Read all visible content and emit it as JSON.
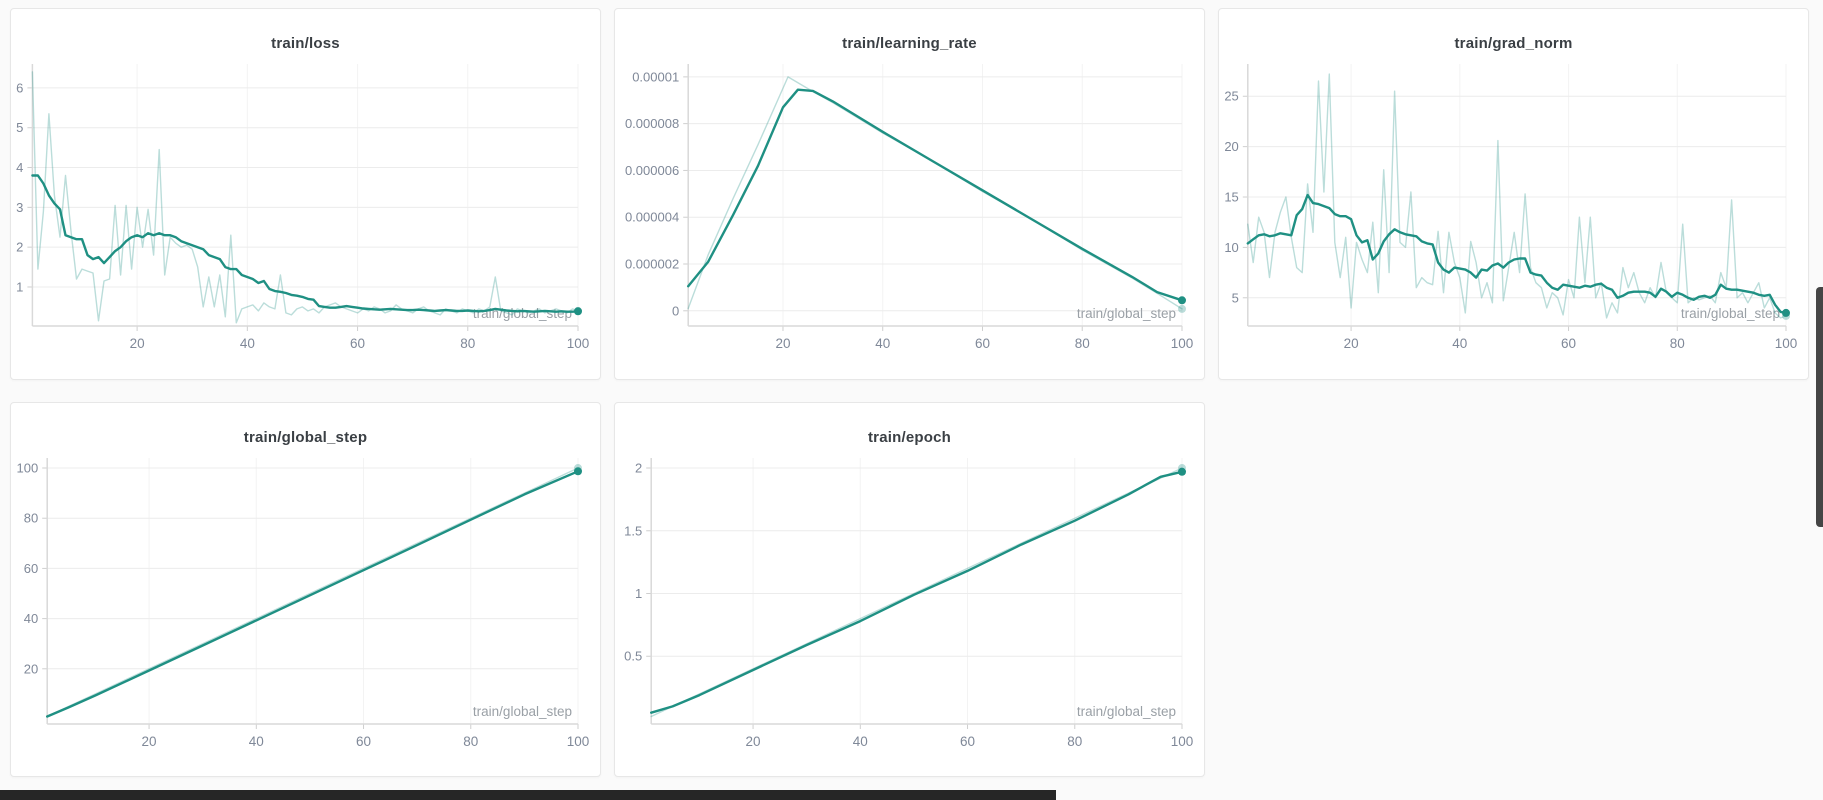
{
  "page": {
    "background_color": "#fafafa",
    "card_background": "#ffffff",
    "accent_color": "#1f9083",
    "raw_line_opacity": 0.3,
    "grid_color": "#ececec",
    "vgrid_color": "#f3f3f3",
    "axis_color": "#d9d9d9",
    "tick_mark_color": "#cfcfcf",
    "tick_text_color": "#7f8898",
    "title_text_color": "#3a3f44",
    "axis_title_color": "#9aa0a6",
    "scrollbar_thumb_color": "#454545",
    "bottom_bar_color": "#262626"
  },
  "x_axis": {
    "title": "train/global_step",
    "ticks": [
      20,
      40,
      60,
      80,
      100
    ],
    "tick_labels": [
      "20",
      "40",
      "60",
      "80",
      "100"
    ],
    "range": [
      1,
      100
    ]
  },
  "chart_data": [
    {
      "type": "line",
      "title": "train/loss",
      "xlabel": "train/global_step",
      "legend_position": "none",
      "grid": true,
      "ylim": [
        0.02,
        6.6
      ],
      "y_ticks": [
        1,
        2,
        3,
        4,
        5,
        6
      ],
      "y_tick_labels": [
        "1",
        "2",
        "3",
        "4",
        "5",
        "6"
      ],
      "series": [
        {
          "name": "train/loss (raw)",
          "role": "raw",
          "values": [
            6.4,
            1.45,
            2.9,
            5.35,
            3.3,
            2.25,
            3.8,
            2.4,
            1.2,
            1.45,
            1.4,
            1.35,
            0.15,
            1.15,
            1.2,
            3.05,
            1.3,
            3.05,
            1.45,
            3.0,
            2.0,
            2.95,
            1.8,
            4.45,
            1.3,
            2.25,
            2.1,
            2.0,
            2.05,
            1.95,
            1.5,
            0.5,
            1.25,
            0.5,
            1.3,
            0.25,
            2.3,
            0.1,
            0.45,
            0.5,
            0.55,
            0.4,
            0.6,
            0.5,
            0.45,
            1.3,
            0.35,
            0.3,
            0.45,
            0.5,
            0.4,
            0.45,
            0.35,
            0.5,
            0.55,
            0.6,
            0.5,
            0.45,
            0.4,
            0.35,
            0.45,
            0.4,
            0.5,
            0.45,
            0.35,
            0.4,
            0.55,
            0.45,
            0.4,
            0.35,
            0.45,
            0.5,
            0.4,
            0.35,
            0.3,
            0.45,
            0.4,
            0.35,
            0.45,
            0.4,
            0.35,
            0.45,
            0.4,
            0.5,
            1.25,
            0.4,
            0.35,
            0.3,
            0.45,
            0.4,
            0.35,
            0.4,
            0.45,
            0.35,
            0.4,
            0.45,
            0.4,
            0.35,
            0.45,
            0.4
          ]
        },
        {
          "name": "train/loss (smoothed)",
          "role": "smoothed",
          "values": [
            3.8,
            3.8,
            3.6,
            3.3,
            3.1,
            2.95,
            2.3,
            2.25,
            2.2,
            2.2,
            1.8,
            1.7,
            1.75,
            1.6,
            1.75,
            1.9,
            2.0,
            2.15,
            2.25,
            2.3,
            2.25,
            2.35,
            2.3,
            2.35,
            2.3,
            2.3,
            2.25,
            2.15,
            2.1,
            2.05,
            2.0,
            1.95,
            1.8,
            1.75,
            1.7,
            1.5,
            1.45,
            1.45,
            1.3,
            1.25,
            1.2,
            1.1,
            1.15,
            0.95,
            0.9,
            0.88,
            0.85,
            0.8,
            0.78,
            0.75,
            0.7,
            0.68,
            0.52,
            0.5,
            0.48,
            0.48,
            0.5,
            0.52,
            0.5,
            0.48,
            0.46,
            0.45,
            0.44,
            0.43,
            0.44,
            0.45,
            0.44,
            0.43,
            0.42,
            0.42,
            0.43,
            0.42,
            0.41,
            0.4,
            0.41,
            0.42,
            0.41,
            0.4,
            0.4,
            0.41,
            0.4,
            0.39,
            0.4,
            0.42,
            0.45,
            0.43,
            0.41,
            0.4,
            0.39,
            0.4,
            0.39,
            0.38,
            0.39,
            0.4,
            0.39,
            0.38,
            0.39,
            0.38,
            0.38,
            0.39
          ]
        }
      ]
    },
    {
      "type": "line",
      "title": "train/learning_rate",
      "xlabel": "train/global_step",
      "legend_position": "none",
      "grid": true,
      "ylim": [
        -6.5e-07,
        1.055e-05
      ],
      "y_ticks": [
        0,
        2e-06,
        4e-06,
        6e-06,
        8e-06,
        1e-05
      ],
      "y_tick_labels": [
        "0",
        "0.000002",
        "0.000004",
        "0.000006",
        "0.000008",
        "0.00001"
      ],
      "series": [
        {
          "name": "train/learning_rate (raw)",
          "role": "raw",
          "x": [
            1,
            5,
            10,
            15,
            21,
            25,
            30,
            40,
            50,
            60,
            70,
            80,
            90,
            95,
            100
          ],
          "values": [
            1e-07,
            2.4e-06,
            4.8e-06,
            7.1e-06,
            1e-05,
            9.5e-06,
            8.9e-06,
            7.6e-06,
            6.4e-06,
            5.1e-06,
            3.9e-06,
            2.6e-06,
            1.4e-06,
            7.5e-07,
            8e-08
          ]
        },
        {
          "name": "train/learning_rate (smoothed)",
          "role": "smoothed",
          "x": [
            1,
            5,
            10,
            15,
            20,
            23,
            26,
            30,
            40,
            50,
            60,
            70,
            80,
            90,
            95,
            100
          ],
          "values": [
            1.05e-06,
            2.1e-06,
            4.1e-06,
            6.2e-06,
            8.7e-06,
            9.45e-06,
            9.4e-06,
            8.95e-06,
            7.65e-06,
            6.4e-06,
            5.15e-06,
            3.9e-06,
            2.65e-06,
            1.45e-06,
            8e-07,
            4.5e-07
          ]
        }
      ]
    },
    {
      "type": "line",
      "title": "train/grad_norm",
      "xlabel": "train/global_step",
      "legend_position": "none",
      "grid": true,
      "ylim": [
        2.2,
        28.2
      ],
      "y_ticks": [
        5,
        10,
        15,
        20,
        25
      ],
      "y_tick_labels": [
        "5",
        "10",
        "15",
        "20",
        "25"
      ],
      "series": [
        {
          "name": "train/grad_norm (raw)",
          "role": "raw",
          "values": [
            12.3,
            8.5,
            13.0,
            11.5,
            7.0,
            11.5,
            13.5,
            15.0,
            11.0,
            8.0,
            7.5,
            16.3,
            11.5,
            26.5,
            15.5,
            27.2,
            10.5,
            7.0,
            11.0,
            4.0,
            10.5,
            8.8,
            7.5,
            12.5,
            5.5,
            17.7,
            7.5,
            25.5,
            10.5,
            10.0,
            15.5,
            6.0,
            7.0,
            6.5,
            6.3,
            11.6,
            5.5,
            11.5,
            8.5,
            7.0,
            3.5,
            10.6,
            8.5,
            5.0,
            6.5,
            4.5,
            20.6,
            4.7,
            8.0,
            11.5,
            7.5,
            15.3,
            8.0,
            6.5,
            6.0,
            4.0,
            5.5,
            5.0,
            3.3,
            6.8,
            5.0,
            13.0,
            6.5,
            13.0,
            5.0,
            6.5,
            3.0,
            4.5,
            3.5,
            8.0,
            6.0,
            7.5,
            5.5,
            4.5,
            6.0,
            5.0,
            8.5,
            5.5,
            5.0,
            4.5,
            12.3,
            4.5,
            5.0,
            4.8,
            5.0,
            5.2,
            4.5,
            7.5,
            6.0,
            14.7,
            5.0,
            5.5,
            4.5,
            5.5,
            6.5,
            4.0,
            5.0,
            3.5,
            3.0,
            3.2
          ]
        },
        {
          "name": "train/grad_norm (smoothed)",
          "role": "smoothed",
          "values": [
            10.4,
            10.8,
            11.2,
            11.3,
            11.1,
            11.2,
            11.4,
            11.3,
            11.2,
            13.2,
            13.8,
            15.2,
            14.4,
            14.3,
            14.1,
            13.9,
            13.3,
            13.1,
            13.1,
            12.8,
            11.2,
            10.5,
            10.7,
            8.8,
            9.4,
            10.6,
            11.3,
            11.8,
            11.5,
            11.3,
            11.2,
            11.1,
            10.6,
            10.4,
            10.3,
            8.5,
            7.8,
            7.5,
            8.0,
            7.9,
            7.8,
            7.5,
            7.0,
            7.8,
            7.7,
            8.2,
            8.4,
            8.0,
            8.5,
            8.8,
            8.9,
            8.9,
            7.5,
            7.3,
            7.2,
            6.5,
            6.0,
            5.8,
            6.3,
            6.2,
            6.1,
            6.0,
            6.2,
            6.1,
            6.3,
            6.4,
            6.0,
            5.8,
            5.0,
            5.2,
            5.5,
            5.6,
            5.6,
            5.6,
            5.5,
            5.1,
            5.9,
            5.6,
            5.1,
            5.5,
            5.3,
            5.0,
            4.8,
            5.1,
            5.2,
            5.0,
            5.3,
            6.3,
            5.9,
            5.8,
            5.8,
            5.7,
            5.6,
            5.5,
            5.3,
            5.2,
            5.3,
            4.3,
            3.6,
            3.5
          ]
        }
      ]
    },
    {
      "type": "line",
      "title": "train/global_step",
      "xlabel": "train/global_step",
      "legend_position": "none",
      "grid": true,
      "ylim": [
        -2,
        104
      ],
      "y_ticks": [
        20,
        40,
        60,
        80,
        100
      ],
      "y_tick_labels": [
        "20",
        "40",
        "60",
        "80",
        "100"
      ],
      "series": [
        {
          "name": "train/global_step (raw)",
          "role": "raw",
          "x": [
            1,
            5,
            10,
            20,
            30,
            40,
            50,
            60,
            70,
            80,
            90,
            100
          ],
          "values": [
            1,
            5,
            10,
            20,
            30,
            40,
            50,
            60,
            70,
            80,
            90,
            100
          ]
        },
        {
          "name": "train/global_step (smoothed)",
          "role": "smoothed",
          "x": [
            1,
            5,
            10,
            20,
            30,
            40,
            50,
            60,
            70,
            80,
            90,
            100
          ],
          "values": [
            1,
            4.6,
            9.4,
            19.3,
            29.3,
            39.3,
            49.3,
            59.3,
            69.3,
            79.4,
            89.5,
            98.7
          ]
        }
      ]
    },
    {
      "type": "line",
      "title": "train/epoch",
      "xlabel": "train/global_step",
      "legend_position": "none",
      "grid": true,
      "ylim": [
        -0.04,
        2.08
      ],
      "y_ticks": [
        0.5,
        1,
        1.5,
        2
      ],
      "y_tick_labels": [
        "0.5",
        "1",
        "1.5",
        "2"
      ],
      "series": [
        {
          "name": "train/epoch (raw)",
          "role": "raw",
          "x": [
            1,
            5,
            10,
            20,
            30,
            40,
            50,
            60,
            70,
            80,
            90,
            96,
            100
          ],
          "values": [
            0.02,
            0.1,
            0.2,
            0.4,
            0.6,
            0.8,
            1.0,
            1.2,
            1.4,
            1.6,
            1.8,
            1.92,
            2.0
          ]
        },
        {
          "name": "train/epoch (smoothed)",
          "role": "smoothed",
          "x": [
            1,
            5,
            10,
            20,
            30,
            40,
            50,
            60,
            70,
            80,
            90,
            96,
            100
          ],
          "values": [
            0.05,
            0.1,
            0.19,
            0.39,
            0.59,
            0.78,
            0.99,
            1.18,
            1.39,
            1.58,
            1.79,
            1.93,
            1.97
          ]
        }
      ]
    }
  ]
}
